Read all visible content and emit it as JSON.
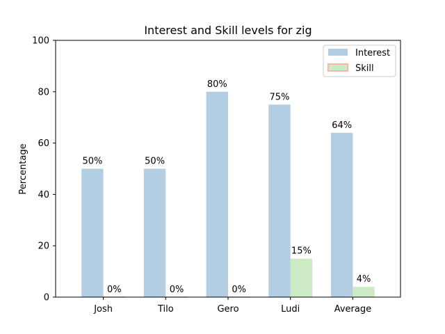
{
  "chart_data": {
    "type": "bar",
    "title": "Interest and Skill levels for zig",
    "xlabel": "",
    "ylabel": "Percentage",
    "ylim": [
      0,
      100
    ],
    "yticks": [
      "0",
      "20",
      "40",
      "60",
      "80",
      "100"
    ],
    "categories": [
      "Josh",
      "Tilo",
      "Gero",
      "Ludi",
      "Average"
    ],
    "series": [
      {
        "name": "Interest",
        "values": [
          50,
          50,
          80,
          75,
          64
        ],
        "labels": [
          "50%",
          "50%",
          "80%",
          "75%",
          "64%"
        ],
        "color": "#b3cde3"
      },
      {
        "name": "Skill",
        "values": [
          0,
          0,
          0,
          15,
          4
        ],
        "labels": [
          "0%",
          "0%",
          "0%",
          "15%",
          "4%"
        ],
        "color": "#ccebc5",
        "edge_color": "#fbb4ae"
      }
    ],
    "legend": "top-right",
    "grid": false
  }
}
